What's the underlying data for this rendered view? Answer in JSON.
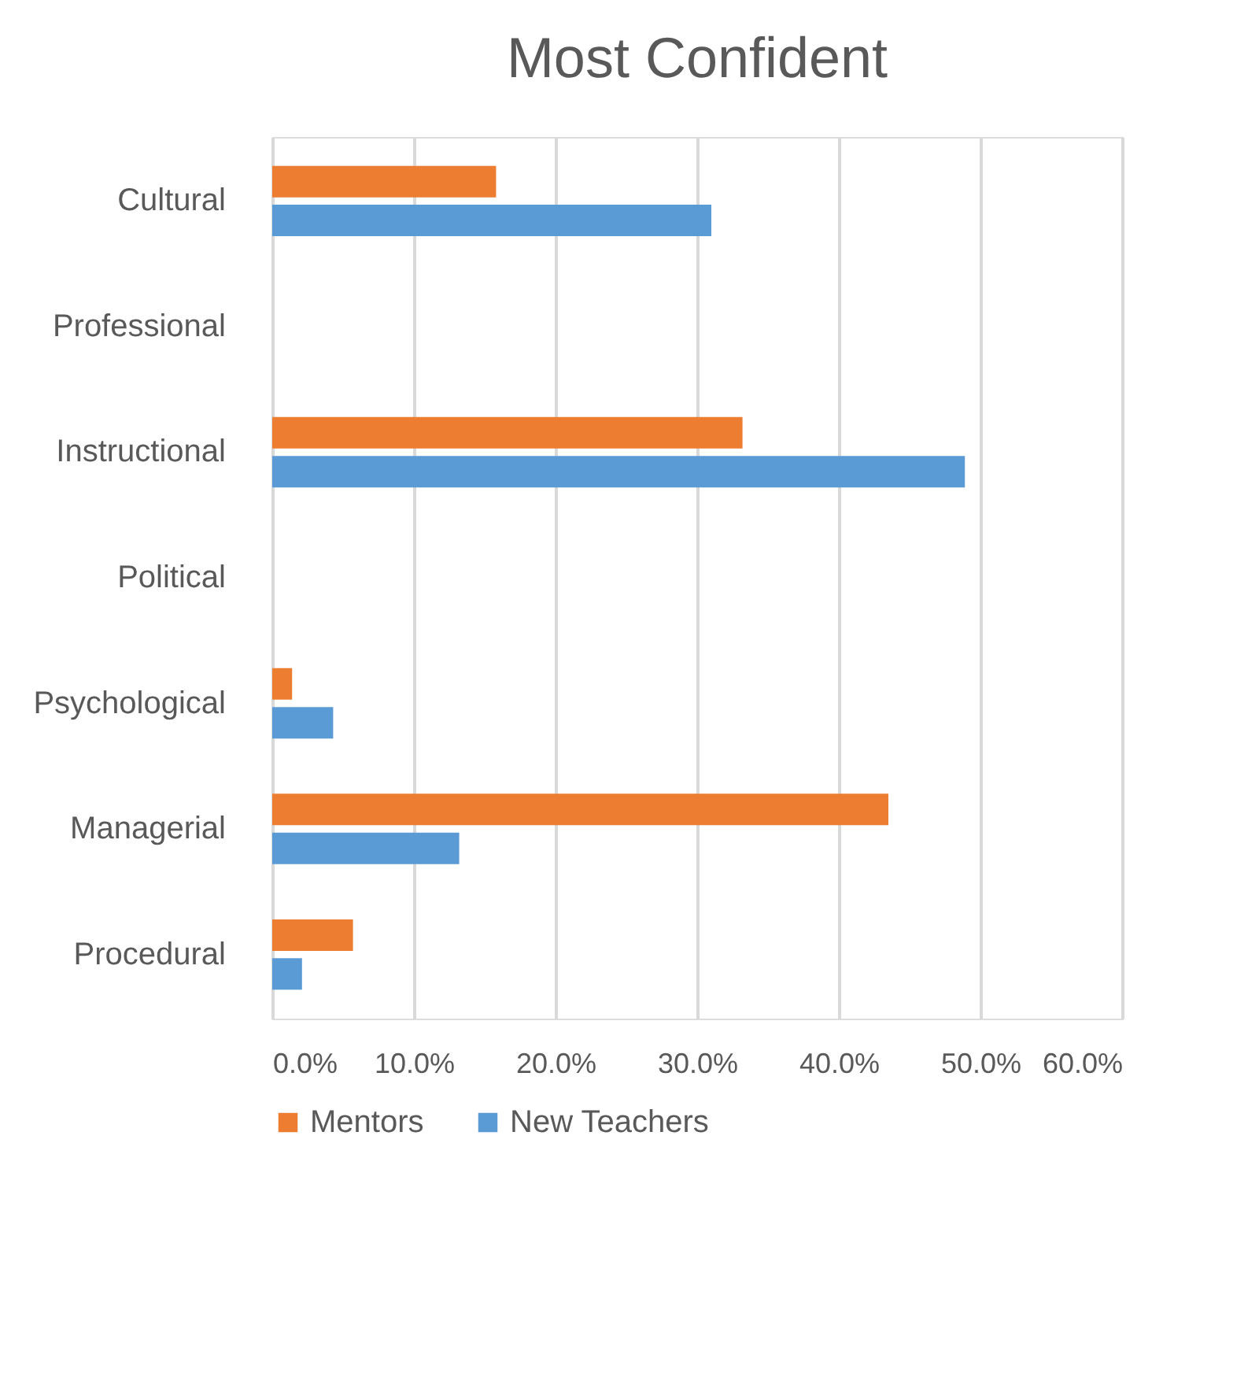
{
  "chart_data": {
    "type": "bar",
    "orientation": "horizontal",
    "title": "Most Confident",
    "categories": [
      "Cultural",
      "Professional",
      "Instructional",
      "Political",
      "Psychological",
      "Managerial",
      "Procedural"
    ],
    "series": [
      {
        "name": "Mentors",
        "color": "#ed7d31",
        "values": [
          15.8,
          0,
          33.2,
          0,
          1.4,
          43.5,
          5.7
        ]
      },
      {
        "name": "New Teachers",
        "color": "#5b9bd5",
        "values": [
          31.0,
          0,
          48.9,
          0,
          4.3,
          13.2,
          2.1
        ]
      }
    ],
    "xlim": [
      0,
      60
    ],
    "xticks": [
      {
        "value": 0,
        "label": "0.0%"
      },
      {
        "value": 10,
        "label": "10.0%"
      },
      {
        "value": 20,
        "label": "20.0%"
      },
      {
        "value": 30,
        "label": "30.0%"
      },
      {
        "value": 40,
        "label": "40.0%"
      },
      {
        "value": 50,
        "label": "50.0%"
      },
      {
        "value": 60,
        "label": "60.0%"
      }
    ],
    "grid": "x",
    "legend": "bottom"
  }
}
